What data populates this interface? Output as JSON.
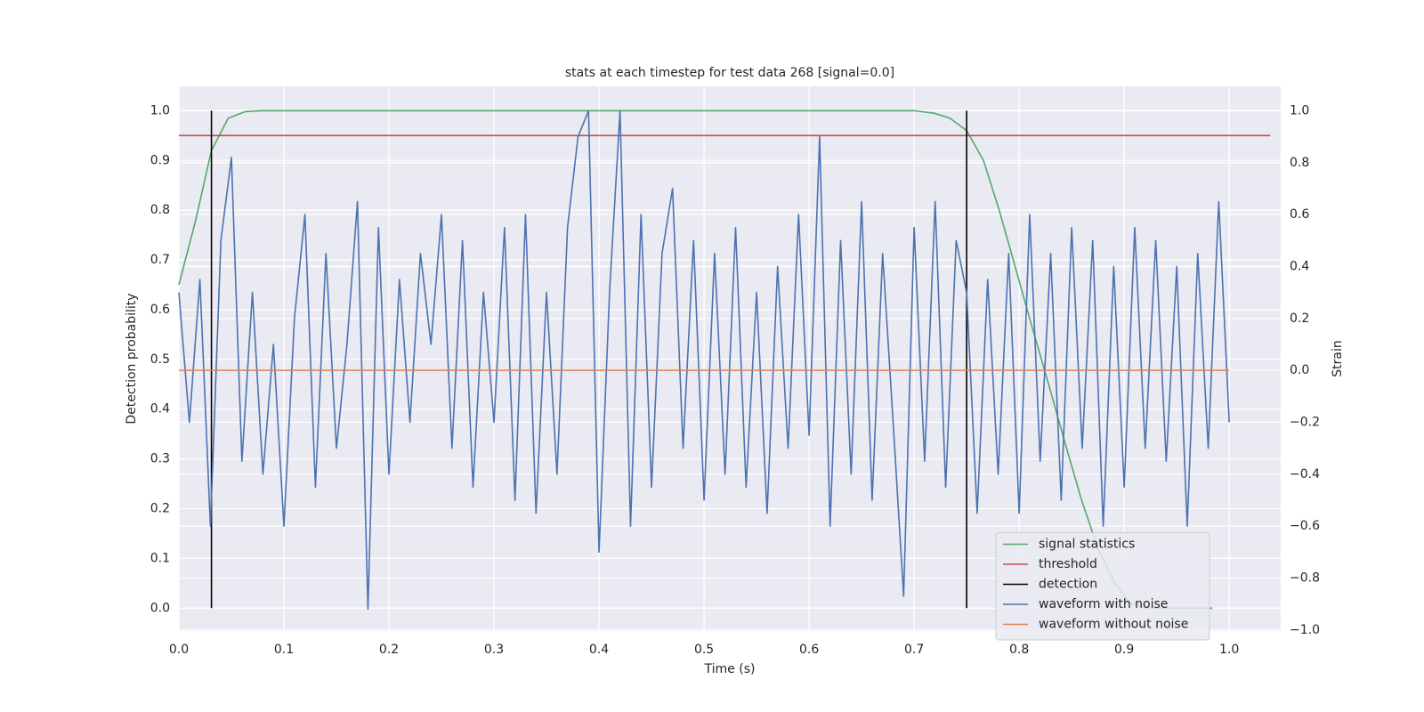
{
  "chart_data": {
    "type": "line",
    "title": "stats at each timestep for test data 268 [signal=0.0]",
    "xlabel": "Time (s)",
    "ylabel": "Detection probability",
    "y2label": "Strain",
    "xlim": [
      0,
      1.049
    ],
    "ylim": [
      -0.046,
      1.049
    ],
    "y2lim": [
      -1.004,
      1.094
    ],
    "xticks": [
      {
        "value": 0,
        "label": "0.0"
      },
      0.1,
      0.2,
      0.3,
      0.4,
      0.5,
      0.6,
      0.7,
      0.8,
      0.9,
      {
        "value": 1,
        "label": "1.0"
      }
    ],
    "yticks": [
      {
        "value": 0,
        "label": "0.0"
      },
      0.1,
      0.2,
      0.3,
      0.4,
      0.5,
      0.6,
      0.7,
      0.8,
      0.9,
      {
        "value": 1,
        "label": "1.0"
      }
    ],
    "y2ticks": [
      {
        "value": -1,
        "label": "−1.0"
      },
      {
        "value": -0.8,
        "label": "−0.8"
      },
      {
        "value": -0.6,
        "label": "−0.6"
      },
      {
        "value": -0.4,
        "label": "−0.4"
      },
      {
        "value": -0.2,
        "label": "−0.2"
      },
      {
        "value": 0,
        "label": "0.0"
      },
      0.2,
      0.4,
      0.6,
      0.8,
      {
        "value": 1,
        "label": "1.0"
      }
    ],
    "grid": true,
    "legend": "lower right",
    "series": [
      {
        "name": "signal statistics",
        "color": "#55a868",
        "x": [
          0,
          0.016,
          0.031,
          0.047,
          0.063,
          0.078,
          0.7,
          0.719,
          0.734,
          0.75,
          0.766,
          0.781,
          0.797,
          0.813,
          0.828,
          0.844,
          0.859,
          0.875,
          0.891,
          0.906,
          0.922,
          0.938,
          0.953,
          0.969,
          0.984
        ],
        "values": [
          0.65,
          0.78,
          0.92,
          0.985,
          0.998,
          1.0,
          1.0,
          0.995,
          0.985,
          0.96,
          0.9,
          0.8,
          0.68,
          0.56,
          0.45,
          0.33,
          0.22,
          0.12,
          0.05,
          0.01,
          0,
          0,
          0,
          0,
          0
        ]
      },
      {
        "name": "threshold",
        "color": "#c44e52",
        "x": [
          0,
          1.039
        ],
        "values": [
          0.95,
          0.95
        ]
      },
      {
        "name": "detection",
        "color": "#000000",
        "x": [
          0.031,
          0.75
        ],
        "ymin": 0,
        "ymax": 1
      },
      {
        "name": "waveform with noise",
        "color": "#4c72b0",
        "axis": "y2",
        "x": [
          0,
          0.01,
          0.02,
          0.03,
          0.04,
          0.05,
          0.06,
          0.07,
          0.08,
          0.09,
          0.1,
          0.11,
          0.12,
          0.13,
          0.14,
          0.15,
          0.16,
          0.17,
          0.18,
          0.19,
          0.2,
          0.21,
          0.22,
          0.23,
          0.24,
          0.25,
          0.26,
          0.27,
          0.28,
          0.29,
          0.3,
          0.31,
          0.32,
          0.33,
          0.34,
          0.35,
          0.36,
          0.37,
          0.38,
          0.39,
          0.4,
          0.41,
          0.42,
          0.43,
          0.44,
          0.45,
          0.46,
          0.47,
          0.48,
          0.49,
          0.5,
          0.51,
          0.52,
          0.53,
          0.54,
          0.55,
          0.56,
          0.57,
          0.58,
          0.59,
          0.6,
          0.61,
          0.62,
          0.63,
          0.64,
          0.65,
          0.66,
          0.67,
          0.68,
          0.69,
          0.7,
          0.71,
          0.72,
          0.73,
          0.74,
          0.75,
          0.76,
          0.77,
          0.78,
          0.79,
          0.8,
          0.81,
          0.82,
          0.83,
          0.84,
          0.85,
          0.86,
          0.87,
          0.88,
          0.89,
          0.9,
          0.91,
          0.92,
          0.93,
          0.94,
          0.95,
          0.96,
          0.97,
          0.98,
          0.99,
          1.0
        ],
        "values": [
          0.3,
          -0.2,
          0.35,
          -0.6,
          0.5,
          0.82,
          -0.35,
          0.3,
          -0.4,
          0.1,
          -0.6,
          0.2,
          0.6,
          -0.45,
          0.45,
          -0.3,
          0.1,
          0.65,
          -0.92,
          0.55,
          -0.4,
          0.35,
          -0.2,
          0.45,
          0.1,
          0.6,
          -0.3,
          0.5,
          -0.45,
          0.3,
          -0.2,
          0.55,
          -0.5,
          0.6,
          -0.55,
          0.3,
          -0.4,
          0.55,
          0.9,
          1.0,
          -0.7,
          0.3,
          1.0,
          -0.6,
          0.6,
          -0.45,
          0.45,
          0.7,
          -0.3,
          0.5,
          -0.5,
          0.45,
          -0.4,
          0.55,
          -0.45,
          0.3,
          -0.55,
          0.4,
          -0.3,
          0.6,
          -0.25,
          0.9,
          -0.6,
          0.5,
          -0.4,
          0.65,
          -0.5,
          0.45,
          -0.2,
          -0.87,
          0.55,
          -0.35,
          0.65,
          -0.45,
          0.5,
          0.3,
          -0.55,
          0.35,
          -0.4,
          0.45,
          -0.55,
          0.6,
          -0.35,
          0.45,
          -0.5,
          0.55,
          -0.3,
          0.5,
          -0.6,
          0.4,
          -0.45,
          0.55,
          -0.3,
          0.5,
          -0.35,
          0.4,
          -0.6,
          0.45,
          -0.3,
          0.65,
          -0.2
        ]
      },
      {
        "name": "waveform without noise",
        "color": "#dd8452",
        "axis": "y2",
        "x": [
          0,
          1.0
        ],
        "values": [
          0,
          0
        ]
      }
    ]
  }
}
